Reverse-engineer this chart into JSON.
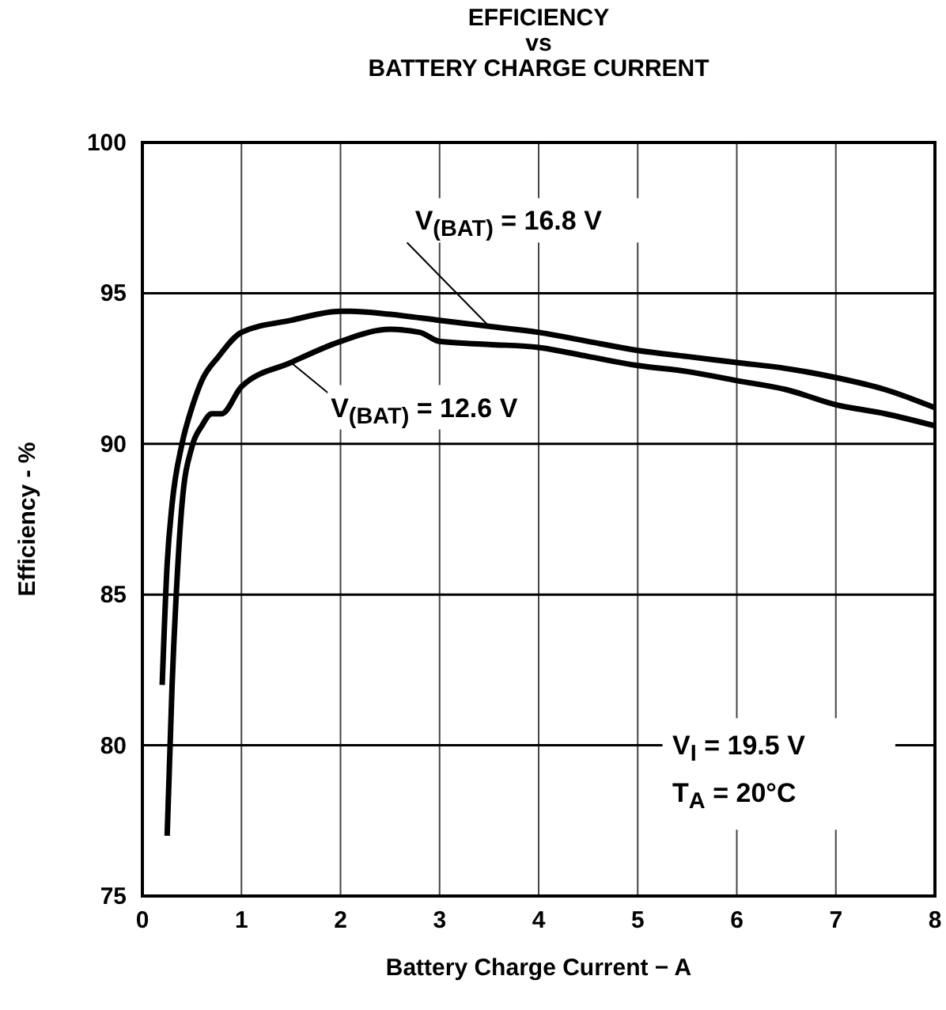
{
  "chart_data": {
    "type": "line",
    "title": "EFFICIENCY\nvs\nBATTERY CHARGE CURRENT",
    "xlabel": "Battery Charge Current − A",
    "ylabel": "Efficiency - %",
    "xlim": [
      0,
      8
    ],
    "xticks": [
      0,
      1,
      2,
      3,
      4,
      5,
      6,
      7,
      8
    ],
    "ylim": [
      75,
      100
    ],
    "yticks": [
      75,
      80,
      85,
      90,
      95,
      100
    ],
    "grid": true,
    "line_style": "solid",
    "series": [
      {
        "name": "V$_{(BAT)}$ = 16.8 V",
        "color": "#000000",
        "x": [
          0.2,
          0.25,
          0.3,
          0.4,
          0.5,
          0.6,
          0.77,
          1,
          1.5,
          2,
          2.1,
          2.5,
          3,
          3.5,
          4,
          4.5,
          5,
          5.5,
          6,
          6.5,
          7,
          7.5,
          8
        ],
        "values": [
          82,
          86,
          88,
          90,
          91.2,
          92.1,
          92.9,
          93.7,
          94.1,
          94.4,
          94.4,
          94.3,
          94.1,
          93.9,
          93.7,
          93.4,
          93.1,
          92.9,
          92.7,
          92.5,
          92.2,
          91.8,
          91.2
        ]
      },
      {
        "name": "V$_{(BAT)}$ = 12.6 V",
        "color": "#000000",
        "x": [
          0.25,
          0.3,
          0.35,
          0.4,
          0.5,
          0.6,
          0.7,
          0.8,
          1,
          1.5,
          2,
          2.5,
          2.8,
          3,
          3.5,
          4,
          4.5,
          5,
          5.5,
          6,
          6.5,
          7,
          7.5,
          8
        ],
        "values": [
          77,
          82,
          85.5,
          88,
          89.9,
          90.6,
          91,
          91,
          91.9,
          92.7,
          93.4,
          93.8,
          93.7,
          93.4,
          93.3,
          93.2,
          92.9,
          92.6,
          92.4,
          92.1,
          91.8,
          91.3,
          91,
          90.6
        ]
      }
    ],
    "annotations": [
      "V$_{I}$ = 19.5 V",
      "T$_{A}$ = 20°C"
    ]
  }
}
